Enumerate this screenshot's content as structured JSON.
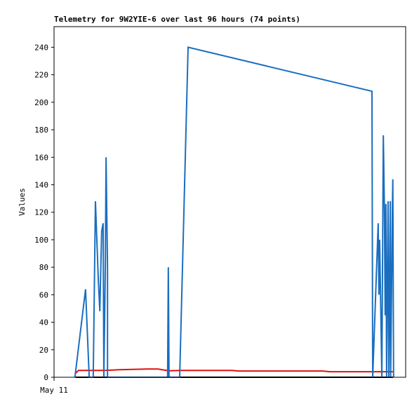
{
  "chart_data": {
    "type": "line",
    "title": "Telemetry for 9W2YIE-6 over last 96 hours (74 points)",
    "y_label": "Values",
    "xlim": [
      0,
      96
    ],
    "xticks": [
      {
        "value": 0,
        "label": "May 11"
      }
    ],
    "ylim": [
      0,
      255
    ],
    "yticks": [
      0,
      20,
      40,
      60,
      80,
      100,
      120,
      140,
      160,
      180,
      200,
      220,
      240
    ],
    "series": [
      {
        "color": "#000000",
        "x": [
          5.9,
          92.5
        ],
        "values": [
          0,
          0
        ]
      },
      {
        "color": "#e01010",
        "x": [
          5.9,
          6.7,
          9.2,
          14.0,
          17.8,
          25.5,
          28.4,
          31.2,
          35.1,
          48.5,
          50.4,
          73.4,
          75.3,
          92.5
        ],
        "values": [
          3,
          5,
          5,
          5,
          5.5,
          6,
          6,
          4.7,
          5,
          5,
          4.5,
          4.5,
          4,
          4
        ]
      },
      {
        "color": "#1a6ec0",
        "x": [
          5.7,
          8.6,
          9.6,
          10.7,
          11.3,
          12.1,
          12.5,
          13.0,
          13.4,
          13.6,
          14.0,
          14.2,
          14.6,
          14.6,
          31.0,
          31.2,
          31.4,
          34.3,
          36.6,
          86.8,
          87.0,
          88.5,
          88.7,
          88.9,
          89.5,
          89.9,
          90.2,
          90.4,
          90.6,
          90.8,
          91.2,
          91.4,
          91.8,
          91.9,
          92.4,
          92.5,
          92.7
        ],
        "values": [
          0,
          64,
          0,
          0,
          128,
          70,
          48,
          106,
          112,
          0,
          80,
          160,
          80,
          0,
          0,
          80,
          0,
          0,
          240,
          208,
          0,
          112,
          60,
          100,
          0,
          176,
          122,
          45,
          126,
          0,
          128,
          0,
          128,
          0,
          128,
          144,
          0
        ]
      }
    ]
  }
}
